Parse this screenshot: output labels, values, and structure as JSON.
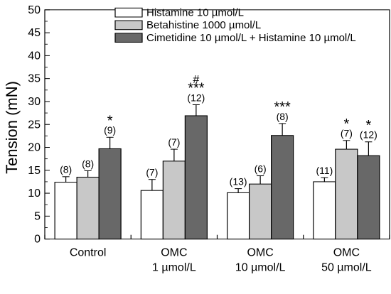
{
  "chart_data": {
    "type": "bar",
    "title": "",
    "xlabel": "",
    "ylabel": "Tension (mN)",
    "ylim": [
      0,
      50
    ],
    "yticks": [
      0,
      5,
      10,
      15,
      20,
      25,
      30,
      35,
      40,
      45,
      50
    ],
    "grid": false,
    "legend_position": "top-right",
    "categories": [
      [
        "Control"
      ],
      [
        "OMC",
        "1 µmol/L"
      ],
      [
        "OMC",
        "10 µmol/L"
      ],
      [
        "OMC",
        "50 µmol/L"
      ]
    ],
    "series": [
      {
        "name": "Histamine 10 µmol/L",
        "color": "#ffffff",
        "values": [
          12.4,
          10.6,
          10.1,
          12.5
        ],
        "errors": [
          1.2,
          2.4,
          0.9,
          0.9
        ],
        "n_labels": [
          "(8)",
          "(7)",
          "(13)",
          "(11)"
        ],
        "sig": [
          "",
          "",
          "",
          ""
        ]
      },
      {
        "name": "Betahistine 1000 µmol/L",
        "color": "#c8c8c8",
        "values": [
          13.5,
          17.0,
          12.0,
          19.6
        ],
        "errors": [
          1.4,
          2.6,
          1.8,
          1.9
        ],
        "n_labels": [
          "(8)",
          "(7)",
          "(6)",
          "(7)"
        ],
        "sig": [
          "",
          "",
          "",
          "*"
        ]
      },
      {
        "name": "Cimetidine 10 µmol/L + Histamine 10 µmol/L",
        "color": "#686868",
        "values": [
          19.7,
          26.9,
          22.6,
          18.2
        ],
        "errors": [
          2.5,
          2.4,
          2.6,
          3.0
        ],
        "n_labels": [
          "(9)",
          "(12)",
          "(8)",
          "(12)"
        ],
        "sig": [
          "*",
          "***",
          "***",
          "*"
        ],
        "sig_extra": [
          "",
          "#",
          "",
          ""
        ]
      }
    ]
  }
}
